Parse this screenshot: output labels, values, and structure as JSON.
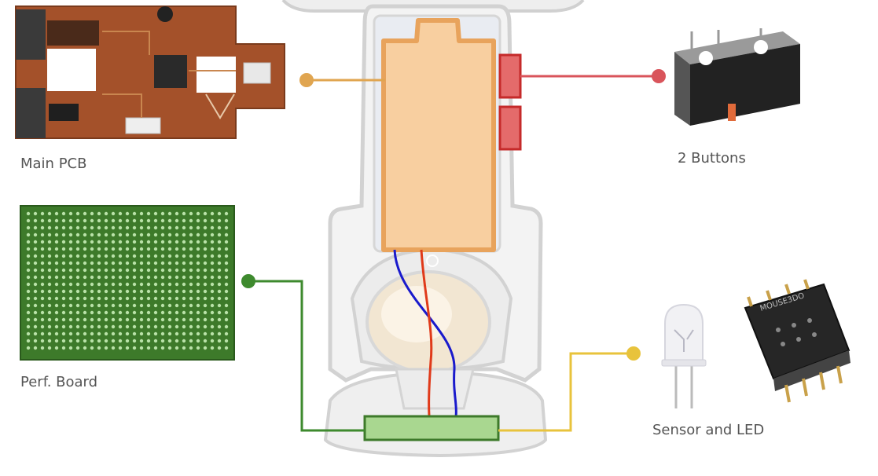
{
  "labels": {
    "main_pcb": "Main PCB",
    "buttons": "2 Buttons",
    "perf_board": "Perf. Board",
    "sensor_led": "Sensor and LED"
  },
  "sensor_chip_marking": "MOUSE3DO",
  "colors": {
    "battery_fill": "#f8cfa0",
    "battery_stroke": "#e8a35c",
    "button_red": "#d9545b",
    "perf_green": "#3e8a2e",
    "sensor_yellow": "#e8c33c",
    "connector_fill": "#a9d790",
    "connector_stroke": "#3d7a2a",
    "wire_blue": "#1a1acc",
    "wire_red": "#e03a1a",
    "pcb_brown": "#a4512a",
    "housing_gray": "#d6d6d6"
  }
}
